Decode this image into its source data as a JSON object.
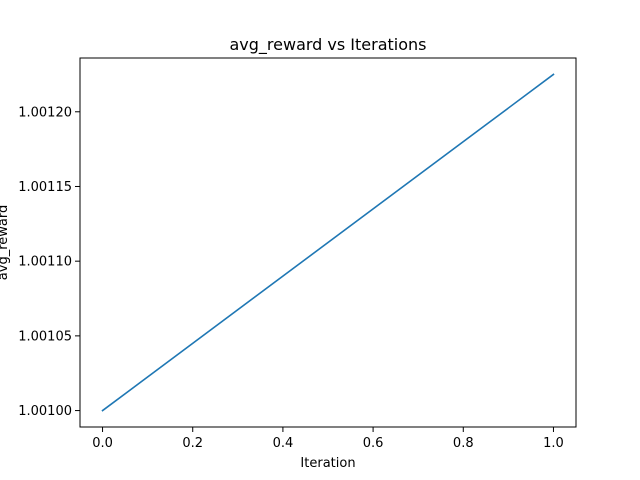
{
  "chart_data": {
    "type": "line",
    "title": "avg_reward vs Iterations",
    "xlabel": "Iteration",
    "ylabel": "avg_reward",
    "xlim": [
      -0.05,
      1.05
    ],
    "ylim": [
      1.000989,
      1.001236
    ],
    "x_ticks": [
      0.0,
      0.2,
      0.4,
      0.6,
      0.8,
      1.0
    ],
    "x_tick_labels": [
      "0.0",
      "0.2",
      "0.4",
      "0.6",
      "0.8",
      "1.0"
    ],
    "y_ticks": [
      1.001,
      1.00105,
      1.0011,
      1.00115,
      1.0012
    ],
    "y_tick_labels": [
      "1.00100",
      "1.00105",
      "1.00110",
      "1.00115",
      "1.00120"
    ],
    "grid": false,
    "series": [
      {
        "color": "#1f77b4",
        "x": [
          0,
          1
        ],
        "y": [
          1.001,
          1.001225
        ]
      }
    ]
  }
}
